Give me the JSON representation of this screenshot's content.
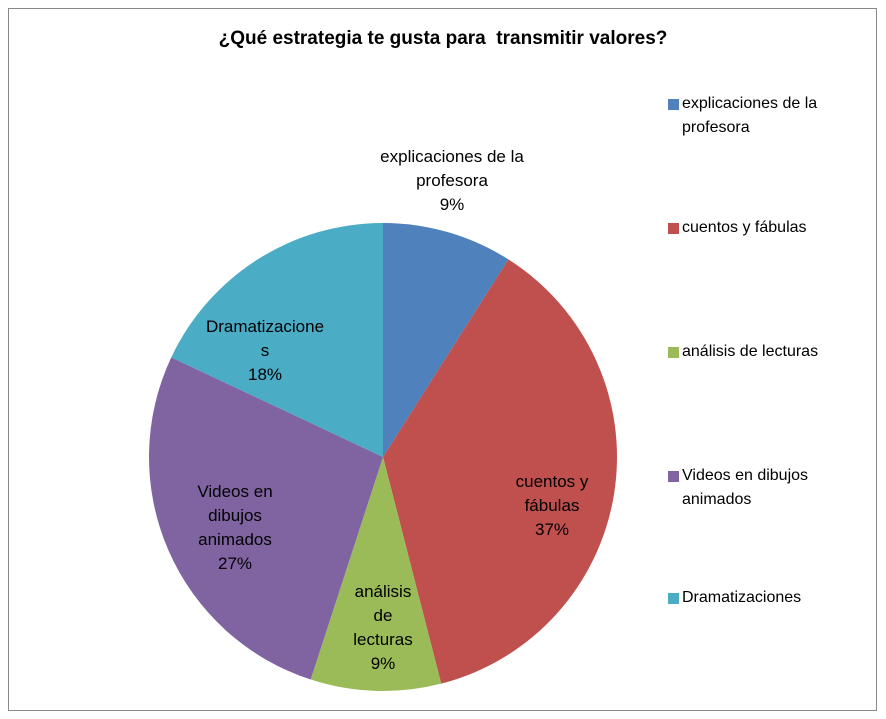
{
  "chart_data": {
    "type": "pie",
    "title": "¿Qué estrategia te gusta para  transmitir valores?",
    "categories": [
      "explicaciones de la profesora",
      "cuentos y fábulas",
      "análisis de lecturas",
      "Videos en dibujos animados",
      "Dramatizaciones"
    ],
    "values": [
      9,
      37,
      9,
      27,
      18
    ],
    "value_labels": [
      "9%",
      "37%",
      "9%",
      "27%",
      "18%"
    ],
    "colors": [
      "#4f81bd",
      "#c0504d",
      "#9bbb59",
      "#8064a2",
      "#4bacc6"
    ],
    "legend": "right"
  }
}
